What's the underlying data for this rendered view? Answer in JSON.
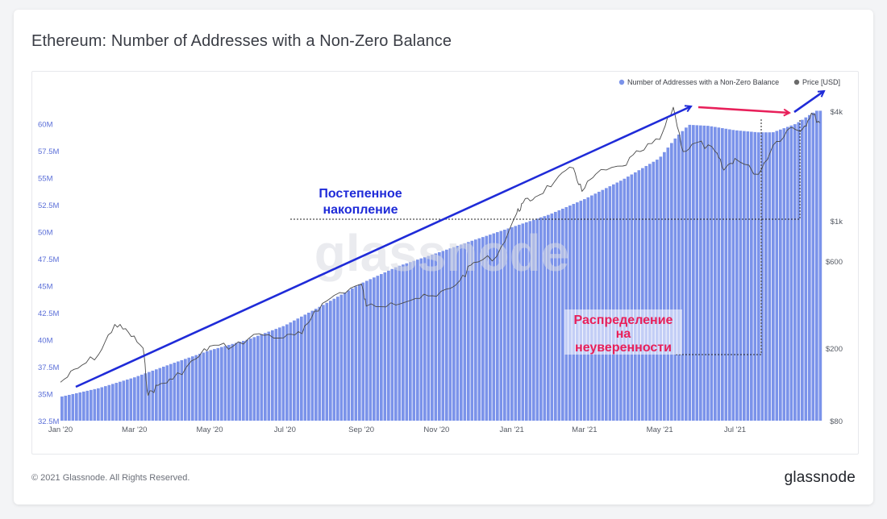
{
  "header": {
    "title": "Ethereum: Number of Addresses with a Non-Zero Balance"
  },
  "footer": {
    "copyright": "© 2021 Glassnode. All Rights Reserved.",
    "brand": "glassnode"
  },
  "watermark": "glassnode",
  "colors": {
    "bars": "#7b93ea",
    "price": "#4a4a4a",
    "arrow_blue": "#1f2bd8",
    "arrow_pink": "#e8205a",
    "anno_blue": "#1f2bd8",
    "anno_pink": "#e8205a"
  },
  "annotations": {
    "accumulation_line1": "Постепенное",
    "accumulation_line2": "накопление",
    "distribution_line1": "Распределение",
    "distribution_line2": "на",
    "distribution_line3": "неуверенности"
  },
  "chart_data": {
    "type": "bar",
    "title": "Ethereum: Number of Addresses with a Non-Zero Balance",
    "legend": {
      "position": "top-right",
      "entries": [
        "Number of Addresses with a Non-Zero Balance",
        "Price [USD]"
      ]
    },
    "x_ticks": [
      "Jan '20",
      "Mar '20",
      "May '20",
      "Jul '20",
      "Sep '20",
      "Nov '20",
      "Jan '21",
      "Mar '21",
      "May '21",
      "Jul '21"
    ],
    "y_left": {
      "ticks": [
        "32.5M",
        "35M",
        "37.5M",
        "40M",
        "42.5M",
        "45M",
        "47.5M",
        "50M",
        "52.5M",
        "55M",
        "57.5M",
        "60M"
      ],
      "tick_values": [
        32.5,
        35,
        37.5,
        40,
        42.5,
        45,
        47.5,
        50,
        52.5,
        55,
        57.5,
        60
      ],
      "range": [
        32.5,
        62.5
      ],
      "unit": "M"
    },
    "y_right": {
      "ticks": [
        "$80",
        "$200",
        "$600",
        "$1k",
        "$4k"
      ],
      "tick_values": [
        80,
        200,
        600,
        1000,
        4000
      ],
      "scale": "log",
      "range": [
        80,
        4800
      ]
    },
    "series": [
      {
        "name": "Number of Addresses with a Non-Zero Balance",
        "type": "bar",
        "axis": "left",
        "points": [
          [
            "2020-01-01",
            34.7
          ],
          [
            "2020-02-01",
            35.5
          ],
          [
            "2020-03-01",
            36.5
          ],
          [
            "2020-04-01",
            37.8
          ],
          [
            "2020-05-01",
            39.0
          ],
          [
            "2020-06-01",
            40.0
          ],
          [
            "2020-07-01",
            41.3
          ],
          [
            "2020-08-01",
            43.2
          ],
          [
            "2020-09-01",
            45.2
          ],
          [
            "2020-10-01",
            46.8
          ],
          [
            "2020-11-01",
            48.0
          ],
          [
            "2020-12-01",
            49.2
          ],
          [
            "2021-01-01",
            50.4
          ],
          [
            "2021-02-01",
            51.6
          ],
          [
            "2021-03-01",
            53.0
          ],
          [
            "2021-04-01",
            54.8
          ],
          [
            "2021-05-01",
            56.8
          ],
          [
            "2021-05-15",
            58.8
          ],
          [
            "2021-05-25",
            59.9
          ],
          [
            "2021-06-10",
            59.8
          ],
          [
            "2021-07-01",
            59.4
          ],
          [
            "2021-07-20",
            59.2
          ],
          [
            "2021-08-01",
            59.2
          ],
          [
            "2021-08-20",
            60.0
          ],
          [
            "2021-09-05",
            61.2
          ]
        ]
      },
      {
        "name": "Price [USD]",
        "type": "line",
        "axis": "right",
        "points": [
          [
            "2020-01-01",
            130
          ],
          [
            "2020-01-15",
            155
          ],
          [
            "2020-02-01",
            185
          ],
          [
            "2020-02-14",
            270
          ],
          [
            "2020-02-25",
            245
          ],
          [
            "2020-03-08",
            200
          ],
          [
            "2020-03-12",
            110
          ],
          [
            "2020-03-20",
            125
          ],
          [
            "2020-04-01",
            135
          ],
          [
            "2020-04-20",
            175
          ],
          [
            "2020-05-01",
            205
          ],
          [
            "2020-05-20",
            205
          ],
          [
            "2020-06-10",
            240
          ],
          [
            "2020-06-30",
            228
          ],
          [
            "2020-07-15",
            240
          ],
          [
            "2020-07-25",
            320
          ],
          [
            "2020-08-10",
            390
          ],
          [
            "2020-09-01",
            450
          ],
          [
            "2020-09-05",
            340
          ],
          [
            "2020-09-25",
            355
          ],
          [
            "2020-10-15",
            375
          ],
          [
            "2020-11-01",
            385
          ],
          [
            "2020-11-20",
            470
          ],
          [
            "2020-12-01",
            590
          ],
          [
            "2020-12-20",
            640
          ],
          [
            "2021-01-05",
            1100
          ],
          [
            "2021-01-10",
            1250
          ],
          [
            "2021-01-20",
            1350
          ],
          [
            "2021-02-05",
            1650
          ],
          [
            "2021-02-20",
            1950
          ],
          [
            "2021-02-27",
            1450
          ],
          [
            "2021-03-10",
            1800
          ],
          [
            "2021-04-01",
            2000
          ],
          [
            "2021-04-15",
            2400
          ],
          [
            "2021-05-01",
            2800
          ],
          [
            "2021-05-12",
            4200
          ],
          [
            "2021-05-20",
            2400
          ],
          [
            "2021-06-01",
            2700
          ],
          [
            "2021-06-15",
            2400
          ],
          [
            "2021-06-22",
            1900
          ],
          [
            "2021-07-01",
            2200
          ],
          [
            "2021-07-20",
            1800
          ],
          [
            "2021-08-01",
            2600
          ],
          [
            "2021-08-15",
            3250
          ],
          [
            "2021-08-25",
            3200
          ],
          [
            "2021-09-01",
            3900
          ],
          [
            "2021-09-08",
            3450
          ]
        ]
      }
    ]
  }
}
